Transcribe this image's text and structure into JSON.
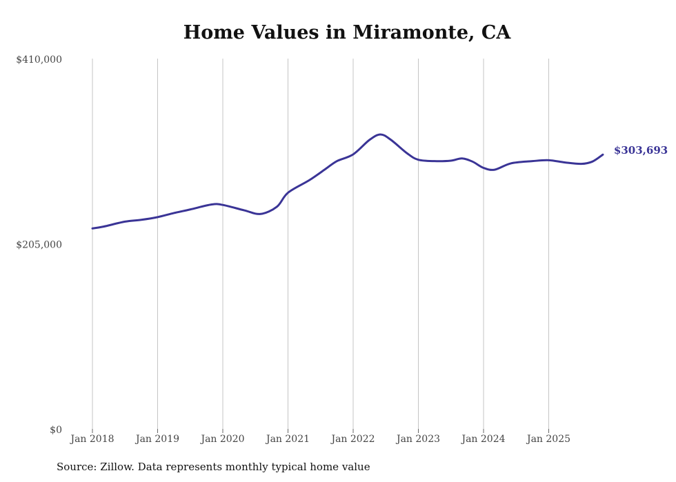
{
  "chart_data": {
    "type": "line",
    "title": "Home Values in Miramonte, CA",
    "xlabel": "",
    "ylabel": "",
    "ylim": [
      0,
      410000
    ],
    "xlim": [
      2018.0,
      2025.83
    ],
    "y_ticks": [
      {
        "value": 0,
        "label": "$0"
      },
      {
        "value": 205000,
        "label": "$205,000"
      },
      {
        "value": 410000,
        "label": "$410,000"
      }
    ],
    "x_ticks": [
      {
        "value": 2018,
        "label": "Jan 2018"
      },
      {
        "value": 2019,
        "label": "Jan 2019"
      },
      {
        "value": 2020,
        "label": "Jan 2020"
      },
      {
        "value": 2021,
        "label": "Jan 2021"
      },
      {
        "value": 2022,
        "label": "Jan 2022"
      },
      {
        "value": 2023,
        "label": "Jan 2023"
      },
      {
        "value": 2024,
        "label": "Jan 2024"
      },
      {
        "value": 2025,
        "label": "Jan 2025"
      }
    ],
    "grid": "vertical",
    "series": [
      {
        "name": "Typical home value",
        "color": "#3a3496",
        "x": [
          2018.0,
          2018.17,
          2018.5,
          2018.75,
          2019.0,
          2019.25,
          2019.5,
          2019.83,
          2020.0,
          2020.33,
          2020.58,
          2020.83,
          2021.0,
          2021.33,
          2021.58,
          2021.75,
          2022.0,
          2022.25,
          2022.42,
          2022.58,
          2022.83,
          2023.0,
          2023.25,
          2023.5,
          2023.67,
          2023.83,
          2024.0,
          2024.17,
          2024.42,
          2024.75,
          2025.0,
          2025.25,
          2025.5,
          2025.67,
          2025.83
        ],
        "values": [
          222000,
          224000,
          229500,
          231500,
          234500,
          239000,
          243000,
          248500,
          248000,
          242000,
          238000,
          246000,
          261500,
          275500,
          288000,
          296500,
          304000,
          320000,
          326000,
          320000,
          305000,
          298000,
          296500,
          297000,
          299500,
          296000,
          289000,
          287000,
          294000,
          296500,
          297500,
          295000,
          293500,
          296000,
          303693
        ]
      }
    ],
    "annotations": [
      {
        "text": "$303,693",
        "position": "end-of-line"
      }
    ]
  },
  "source": "Source: Zillow. Data represents monthly typical home value"
}
